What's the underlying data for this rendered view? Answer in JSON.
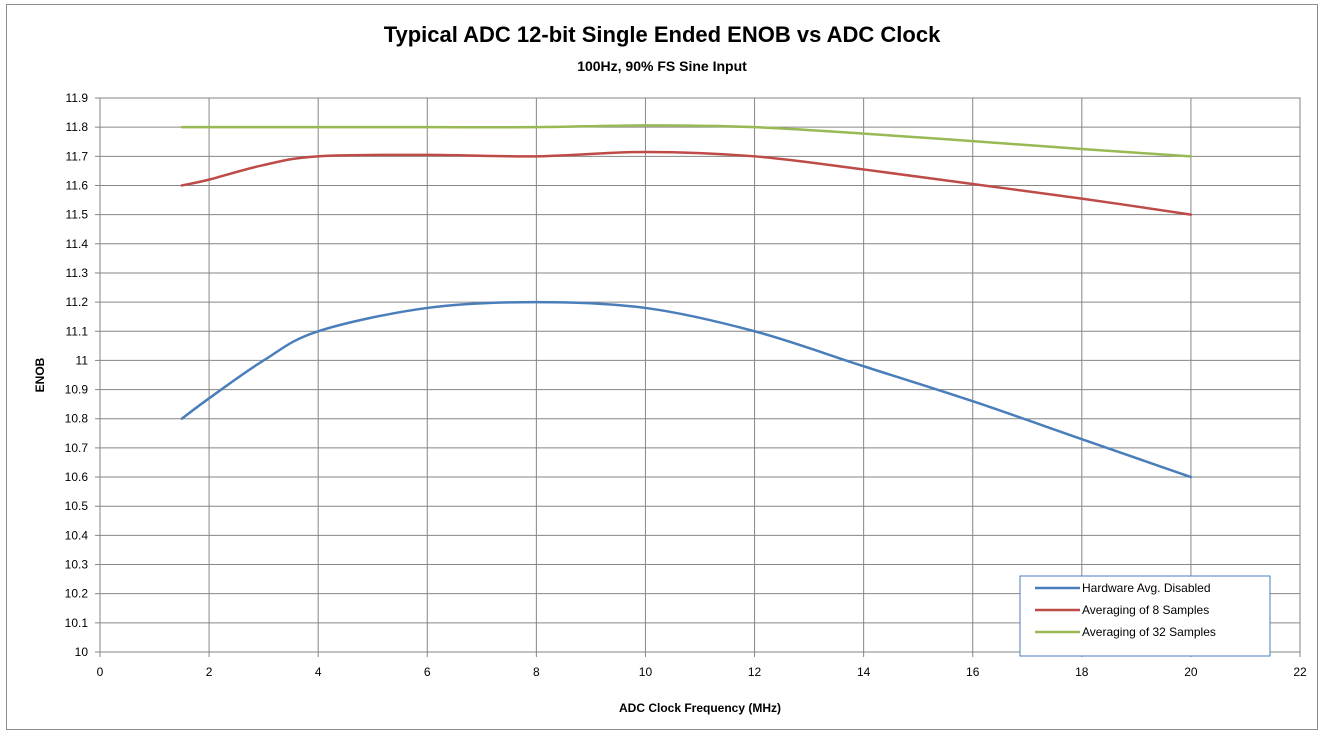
{
  "chart_data": {
    "type": "line",
    "title": "Typical ADC 12-bit Single Ended ENOB vs ADC Clock",
    "subtitle": "100Hz, 90% FS Sine Input",
    "xlabel": "ADC Clock Frequency (MHz)",
    "ylabel": "ENOB",
    "xlim": [
      0,
      22
    ],
    "ylim": [
      10,
      11.9
    ],
    "x_ticks": [
      "0",
      "2",
      "4",
      "6",
      "8",
      "10",
      "12",
      "14",
      "16",
      "18",
      "20",
      "22"
    ],
    "y_ticks": [
      "10",
      "10.1",
      "10.2",
      "10.3",
      "10.4",
      "10.5",
      "10.6",
      "10.7",
      "10.8",
      "10.9",
      "11",
      "11.1",
      "11.2",
      "11.3",
      "11.4",
      "11.5",
      "11.6",
      "11.7",
      "11.8",
      "11.9"
    ],
    "grid": true,
    "legend_position": "bottom-right",
    "x": [
      1.5,
      2,
      3,
      4,
      6,
      8,
      10,
      12,
      14,
      16,
      18,
      20
    ],
    "series": [
      {
        "name": "Hardware Avg. Disabled",
        "color": "#4a7ebb",
        "values": [
          10.8,
          10.87,
          11.0,
          11.1,
          11.18,
          11.2,
          11.18,
          11.1,
          10.98,
          10.86,
          10.73,
          10.6
        ]
      },
      {
        "name": "Averaging of 8 Samples",
        "color": "#be4b48",
        "values": [
          11.6,
          11.62,
          11.67,
          11.7,
          11.705,
          11.7,
          11.715,
          11.7,
          11.655,
          11.605,
          11.555,
          11.5
        ]
      },
      {
        "name": "Averaging of 32 Samples",
        "color": "#98b954",
        "values": [
          11.8,
          11.8,
          11.8,
          11.8,
          11.8,
          11.8,
          11.806,
          11.8,
          11.778,
          11.752,
          11.725,
          11.7
        ]
      }
    ]
  }
}
